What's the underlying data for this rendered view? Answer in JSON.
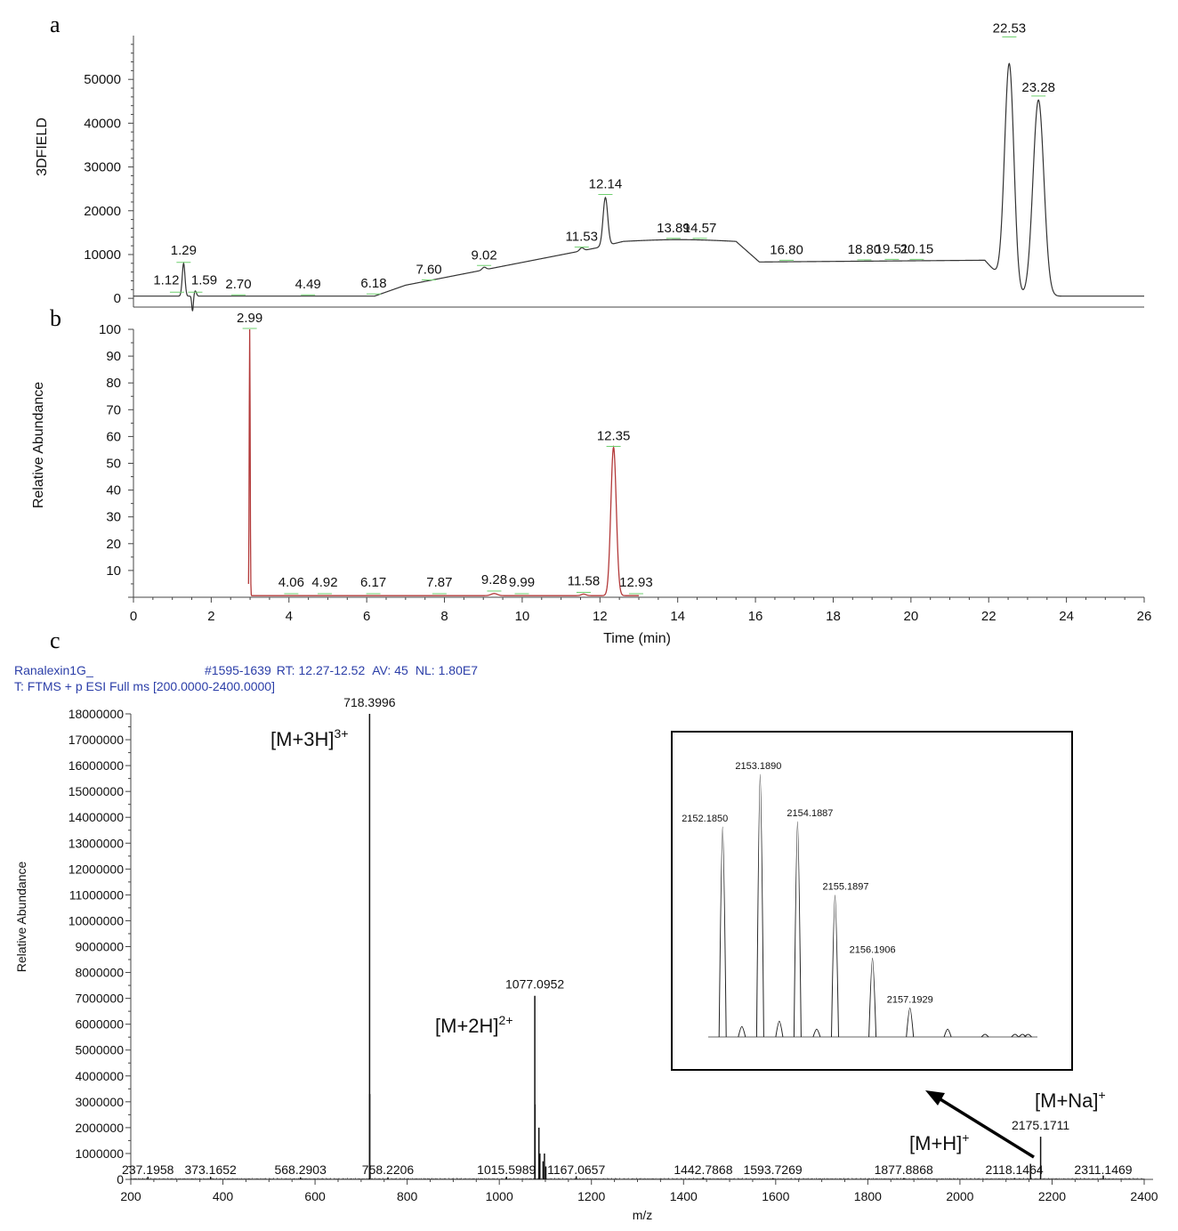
{
  "colors": {
    "trace_a": "#333333",
    "trace_b": "#b33a3a",
    "trace_c": "#111111",
    "header": "#2b3ea8",
    "baseline_marker": "#6fcf6f"
  },
  "chart_data": [
    {
      "panel": "a",
      "type": "line",
      "ylabel": "3DFIELD",
      "xlabel": "",
      "xlim": [
        0,
        26
      ],
      "ylim": [
        -2000,
        60000
      ],
      "yticks": [
        0,
        10000,
        20000,
        30000,
        40000,
        50000
      ],
      "peaks": [
        {
          "x": 1.12,
          "y": 1200,
          "label": "1.12"
        },
        {
          "x": 1.29,
          "y": 8000,
          "label": "1.29"
        },
        {
          "x": 1.59,
          "y": 1200,
          "label": "1.59"
        },
        {
          "x": 2.7,
          "y": 600,
          "label": "2.70"
        },
        {
          "x": 4.49,
          "y": 600,
          "label": "4.49"
        },
        {
          "x": 6.18,
          "y": 800,
          "label": "6.18"
        },
        {
          "x": 7.6,
          "y": 4000,
          "label": "7.60"
        },
        {
          "x": 9.02,
          "y": 7300,
          "label": "9.02"
        },
        {
          "x": 11.53,
          "y": 11500,
          "label": "11.53"
        },
        {
          "x": 12.14,
          "y": 23500,
          "label": "12.14"
        },
        {
          "x": 13.89,
          "y": 13500,
          "label": "13.89"
        },
        {
          "x": 14.57,
          "y": 13500,
          "label": "14.57"
        },
        {
          "x": 16.8,
          "y": 8500,
          "label": "16.80"
        },
        {
          "x": 18.8,
          "y": 8600,
          "label": "18.80"
        },
        {
          "x": 19.51,
          "y": 8700,
          "label": "19.51"
        },
        {
          "x": 20.15,
          "y": 8700,
          "label": "20.15"
        },
        {
          "x": 22.53,
          "y": 59500,
          "label": "22.53"
        },
        {
          "x": 23.28,
          "y": 46000,
          "label": "23.28"
        }
      ]
    },
    {
      "panel": "b",
      "type": "line",
      "ylabel": "Relative Abundance",
      "xlabel": "Time (min)",
      "xlim": [
        0,
        26
      ],
      "ylim": [
        0,
        100
      ],
      "xticks": [
        0,
        2,
        4,
        6,
        8,
        10,
        12,
        14,
        16,
        18,
        20,
        22,
        24,
        26
      ],
      "yticks": [
        10,
        20,
        30,
        40,
        50,
        60,
        70,
        80,
        90,
        100
      ],
      "peaks": [
        {
          "x": 2.99,
          "y": 100,
          "label": "2.99"
        },
        {
          "x": 4.06,
          "y": 1,
          "label": "4.06"
        },
        {
          "x": 4.92,
          "y": 1,
          "label": "4.92"
        },
        {
          "x": 6.17,
          "y": 1,
          "label": "6.17"
        },
        {
          "x": 7.87,
          "y": 1,
          "label": "7.87"
        },
        {
          "x": 9.28,
          "y": 2,
          "label": "9.28"
        },
        {
          "x": 9.99,
          "y": 1,
          "label": "9.99"
        },
        {
          "x": 11.58,
          "y": 1.5,
          "label": "11.58"
        },
        {
          "x": 12.35,
          "y": 56,
          "label": "12.35"
        },
        {
          "x": 12.93,
          "y": 1,
          "label": "12.93"
        }
      ]
    },
    {
      "panel": "c",
      "type": "bar",
      "header_line1": "Ranalexin1G_",
      "header_scan": "#1595-1639",
      "header_rt_label": "RT:",
      "header_rt": "12.27-12.52",
      "header_av_label": "AV:",
      "header_av": "45",
      "header_nl_label": "NL:",
      "header_nl": "1.80E7",
      "header_line2": "T: FTMS + p ESI Full ms [200.0000-2400.0000]",
      "ylabel": "Relative Abundance",
      "xlabel": "m/z",
      "xlim": [
        200,
        2400
      ],
      "ylim": [
        0,
        18000000
      ],
      "xticks": [
        200,
        400,
        600,
        800,
        1000,
        1200,
        1400,
        1600,
        1800,
        2000,
        2200,
        2400
      ],
      "yticks": [
        0,
        1000000,
        2000000,
        3000000,
        4000000,
        5000000,
        6000000,
        7000000,
        8000000,
        9000000,
        10000000,
        11000000,
        12000000,
        13000000,
        14000000,
        15000000,
        16000000,
        17000000,
        18000000
      ],
      "peaks": [
        {
          "x": 237.1958,
          "y": 100000,
          "label": "237.1958"
        },
        {
          "x": 373.1652,
          "y": 100000,
          "label": "373.1652"
        },
        {
          "x": 568.2903,
          "y": 80000,
          "label": "568.2903"
        },
        {
          "x": 718.3996,
          "y": 18000000,
          "label": "718.3996"
        },
        {
          "x": 718.73,
          "y": 3300000
        },
        {
          "x": 719.07,
          "y": 550000
        },
        {
          "x": 719.4,
          "y": 200000
        },
        {
          "x": 758.2206,
          "y": 80000,
          "label": "758.2206"
        },
        {
          "x": 1015.5989,
          "y": 100000,
          "label": "1015.5989"
        },
        {
          "x": 1077.0952,
          "y": 7100000,
          "label": "1077.0952"
        },
        {
          "x": 1077.6,
          "y": 2900000
        },
        {
          "x": 1086.0,
          "y": 2000000
        },
        {
          "x": 1088.1,
          "y": 1000000
        },
        {
          "x": 1095.0,
          "y": 700000
        },
        {
          "x": 1098.0,
          "y": 1000000
        },
        {
          "x": 1101.0,
          "y": 500000
        },
        {
          "x": 1167.0657,
          "y": 120000,
          "label": "1167.0657"
        },
        {
          "x": 1442.7868,
          "y": 80000,
          "label": "1442.7868"
        },
        {
          "x": 1593.7269,
          "y": 50000,
          "label": "1593.7269"
        },
        {
          "x": 1877.8868,
          "y": 50000,
          "label": "1877.8868"
        },
        {
          "x": 2118.1464,
          "y": 50000,
          "label": "2118.1464"
        },
        {
          "x": 2153.19,
          "y": 600000
        },
        {
          "x": 2175.1711,
          "y": 1650000,
          "label": "2175.1711"
        },
        {
          "x": 2311.1469,
          "y": 150000,
          "label": "2311.1469"
        }
      ],
      "ion_annotations": [
        {
          "base": "[M+3H]",
          "sup": "3+"
        },
        {
          "base": "[M+2H]",
          "sup": "2+"
        },
        {
          "base": "[M+H]",
          "sup": "+"
        },
        {
          "base": "[M+Na]",
          "sup": "+"
        }
      ],
      "inset": {
        "type": "bar",
        "peaks": [
          {
            "x": 2152.185,
            "y": 80,
            "label": "2152.1850"
          },
          {
            "x": 2152.7,
            "y": 4
          },
          {
            "x": 2153.189,
            "y": 100,
            "label": "2153.1890"
          },
          {
            "x": 2153.7,
            "y": 6
          },
          {
            "x": 2154.1887,
            "y": 82,
            "label": "2154.1887"
          },
          {
            "x": 2154.7,
            "y": 3
          },
          {
            "x": 2155.1897,
            "y": 54,
            "label": "2155.1897"
          },
          {
            "x": 2156.1906,
            "y": 30,
            "label": "2156.1906"
          },
          {
            "x": 2157.1929,
            "y": 11,
            "label": "2157.1929"
          },
          {
            "x": 2158.2,
            "y": 3
          },
          {
            "x": 2159.2,
            "y": 1
          },
          {
            "x": 2160.0,
            "y": 1
          },
          {
            "x": 2160.2,
            "y": 1
          },
          {
            "x": 2160.35,
            "y": 1
          }
        ]
      }
    }
  ],
  "panel_letters": [
    "a",
    "b",
    "c"
  ]
}
